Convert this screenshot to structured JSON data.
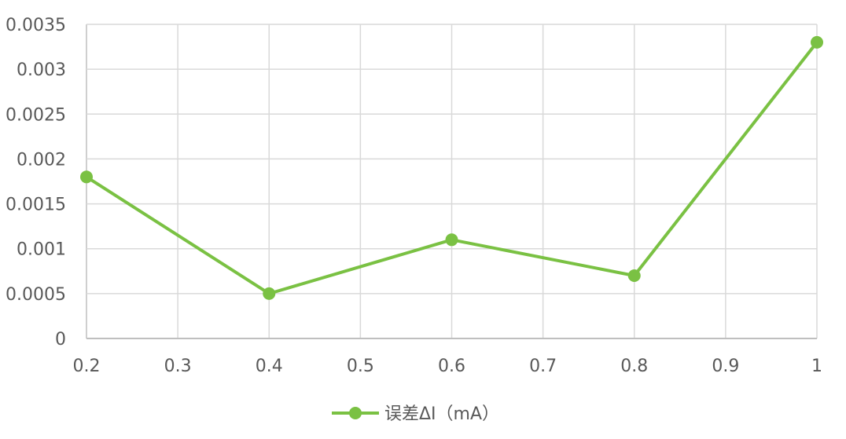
{
  "chart_data": {
    "type": "line",
    "x": [
      0.2,
      0.4,
      0.6,
      0.8,
      1
    ],
    "series": [
      {
        "name": "误差ΔI（mA）",
        "values": [
          0.0018,
          0.0005,
          0.0011,
          0.0007,
          0.0033
        ],
        "color": "#7ac143"
      }
    ],
    "xlim": [
      0.2,
      1
    ],
    "ylim": [
      0,
      0.0035
    ],
    "x_ticks": [
      "0.2",
      "0.3",
      "0.4",
      "0.5",
      "0.6",
      "0.7",
      "0.8",
      "0.9",
      "1"
    ],
    "y_ticks": [
      "0",
      "0.0005",
      "0.001",
      "0.0015",
      "0.002",
      "0.0025",
      "0.003",
      "0.0035"
    ],
    "grid": true,
    "legend_position": "bottom",
    "grid_color": "#d9d9d9",
    "axis_color": "#bfbfbf",
    "label_color": "#595959"
  }
}
